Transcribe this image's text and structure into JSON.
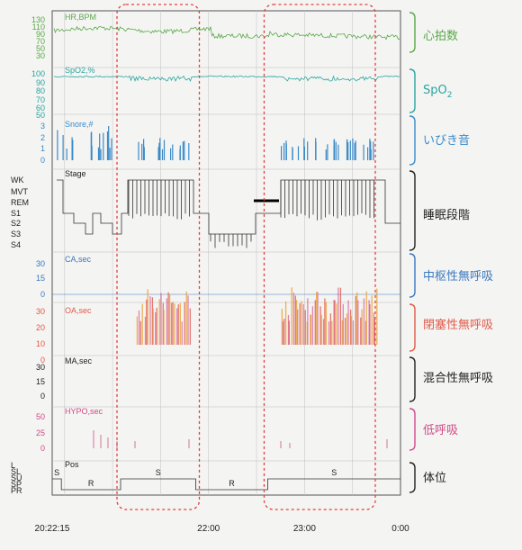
{
  "chart_data": {
    "type": "line",
    "x_ticks": [
      "20:22:15",
      "22:00",
      "23:00",
      "0:00"
    ],
    "panels": [
      {
        "name": "HR,BPM",
        "label": "心拍数",
        "color": "#5aa84a",
        "y_ticks": [
          "130",
          "110",
          "90",
          "70",
          "50",
          "30"
        ],
        "ylim": [
          30,
          130
        ]
      },
      {
        "name": "SpO2,%",
        "label": "SpO2",
        "color": "#2aa6a0",
        "y_ticks": [
          "100",
          "90",
          "80",
          "70",
          "60",
          "50"
        ],
        "ylim": [
          50,
          100
        ]
      },
      {
        "name": "Snore,#",
        "label": "いびき音",
        "color": "#3a8ac8",
        "y_ticks": [
          "3",
          "2",
          "1",
          "0"
        ],
        "ylim": [
          0,
          3
        ]
      },
      {
        "name": "Stage",
        "label": "睡眠段階",
        "color": "#222222",
        "y_ticks": [
          "WK",
          "MVT",
          "REM",
          "S1",
          "S2",
          "S3",
          "S4"
        ]
      },
      {
        "name": "CA,sec",
        "label": "中枢性無呼吸",
        "color": "#3a78c0",
        "y_ticks": [
          "30",
          "15",
          "0"
        ],
        "ylim": [
          0,
          30
        ]
      },
      {
        "name": "OA,sec",
        "label": "閉塞性無呼吸",
        "color": "#e05a4a",
        "y_ticks": [
          "30",
          "20",
          "10",
          "0"
        ],
        "ylim": [
          0,
          30
        ]
      },
      {
        "name": "MA,sec",
        "label": "混合性無呼吸",
        "color": "#222222",
        "y_ticks": [
          "30",
          "15",
          "0"
        ],
        "ylim": [
          0,
          30
        ]
      },
      {
        "name": "HYPO,sec",
        "label": "低呼吸",
        "color": "#d24a8a",
        "y_ticks": [
          "50",
          "25",
          "0"
        ],
        "ylim": [
          0,
          50
        ]
      },
      {
        "name": "Pos",
        "label": "体位",
        "color": "#222222",
        "y_ticks": [
          "L",
          "SL",
          "SU",
          "SP",
          "PR"
        ],
        "segments": [
          {
            "label": "S",
            "start": "20:22:15",
            "end": "20:28"
          },
          {
            "label": "R",
            "start": "20:28",
            "end": "21:05"
          },
          {
            "label": "S",
            "start": "21:05",
            "end": "21:52"
          },
          {
            "label": "R",
            "start": "21:52",
            "end": "22:37"
          },
          {
            "label": "S",
            "start": "22:37",
            "end": "0:00"
          }
        ]
      }
    ],
    "highlights": [
      {
        "start": "21:05",
        "end": "21:52",
        "style": "red-dashed-rounded"
      },
      {
        "start": "22:37",
        "end": "23:42",
        "style": "red-dashed-rounded"
      }
    ]
  }
}
